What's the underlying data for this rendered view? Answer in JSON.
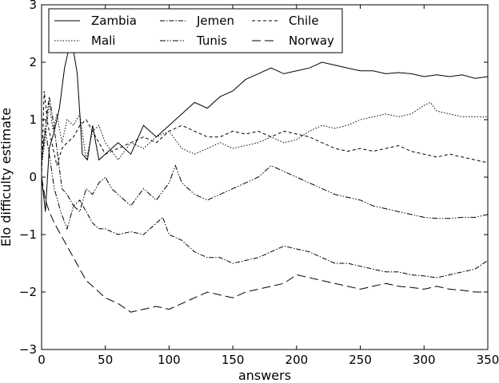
{
  "chart_data": {
    "type": "line",
    "title": "",
    "xlabel": "answers",
    "ylabel": "Elo difficulty estimate",
    "xlim": [
      0,
      350
    ],
    "ylim": [
      -3,
      3
    ],
    "xticks": [
      "0",
      "50",
      "100",
      "150",
      "200",
      "250",
      "300",
      "350"
    ],
    "yticks": [
      "3",
      "2",
      "1",
      "0",
      "−1",
      "−2",
      "−3"
    ],
    "grid": false,
    "legend_position": "top-left",
    "series": [
      {
        "name": "Zambia",
        "line_style": "solid",
        "points": [
          [
            0,
            0.0
          ],
          [
            3,
            -0.6
          ],
          [
            6,
            0.5
          ],
          [
            10,
            0.8
          ],
          [
            14,
            1.2
          ],
          [
            18,
            1.9
          ],
          [
            22,
            2.3
          ],
          [
            25,
            2.2
          ],
          [
            28,
            1.8
          ],
          [
            32,
            0.4
          ],
          [
            36,
            0.3
          ],
          [
            40,
            0.9
          ],
          [
            45,
            0.3
          ],
          [
            50,
            0.4
          ],
          [
            60,
            0.6
          ],
          [
            70,
            0.4
          ],
          [
            80,
            0.9
          ],
          [
            90,
            0.7
          ],
          [
            100,
            0.9
          ],
          [
            110,
            1.1
          ],
          [
            120,
            1.3
          ],
          [
            130,
            1.2
          ],
          [
            140,
            1.4
          ],
          [
            150,
            1.5
          ],
          [
            160,
            1.7
          ],
          [
            170,
            1.8
          ],
          [
            180,
            1.9
          ],
          [
            190,
            1.8
          ],
          [
            200,
            1.85
          ],
          [
            210,
            1.9
          ],
          [
            220,
            2.0
          ],
          [
            230,
            1.95
          ],
          [
            240,
            1.9
          ],
          [
            250,
            1.85
          ],
          [
            260,
            1.85
          ],
          [
            270,
            1.8
          ],
          [
            280,
            1.82
          ],
          [
            290,
            1.8
          ],
          [
            300,
            1.75
          ],
          [
            310,
            1.78
          ],
          [
            320,
            1.75
          ],
          [
            330,
            1.78
          ],
          [
            340,
            1.72
          ],
          [
            350,
            1.75
          ]
        ]
      },
      {
        "name": "Mali",
        "line_style": "dotted",
        "points": [
          [
            0,
            0.2
          ],
          [
            3,
            0.7
          ],
          [
            6,
            1.3
          ],
          [
            9,
            0.8
          ],
          [
            12,
            1.1
          ],
          [
            16,
            0.6
          ],
          [
            20,
            1.0
          ],
          [
            25,
            0.9
          ],
          [
            30,
            1.1
          ],
          [
            35,
            0.3
          ],
          [
            40,
            0.8
          ],
          [
            45,
            0.9
          ],
          [
            50,
            0.6
          ],
          [
            60,
            0.3
          ],
          [
            70,
            0.6
          ],
          [
            80,
            0.5
          ],
          [
            90,
            0.7
          ],
          [
            100,
            0.8
          ],
          [
            110,
            0.5
          ],
          [
            120,
            0.4
          ],
          [
            130,
            0.5
          ],
          [
            140,
            0.6
          ],
          [
            150,
            0.5
          ],
          [
            160,
            0.55
          ],
          [
            170,
            0.6
          ],
          [
            180,
            0.7
          ],
          [
            190,
            0.6
          ],
          [
            200,
            0.65
          ],
          [
            210,
            0.8
          ],
          [
            220,
            0.9
          ],
          [
            230,
            0.85
          ],
          [
            240,
            0.9
          ],
          [
            250,
            1.0
          ],
          [
            260,
            1.05
          ],
          [
            270,
            1.1
          ],
          [
            280,
            1.05
          ],
          [
            290,
            1.1
          ],
          [
            300,
            1.25
          ],
          [
            305,
            1.3
          ],
          [
            310,
            1.15
          ],
          [
            320,
            1.1
          ],
          [
            330,
            1.05
          ],
          [
            340,
            1.05
          ],
          [
            350,
            1.05
          ]
        ]
      },
      {
        "name": "Jemen",
        "line_style": "dashdot",
        "points": [
          [
            0,
            0.3
          ],
          [
            3,
            0.9
          ],
          [
            6,
            1.4
          ],
          [
            9,
            1.0
          ],
          [
            12,
            0.5
          ],
          [
            16,
            -0.2
          ],
          [
            20,
            -0.3
          ],
          [
            25,
            -0.5
          ],
          [
            30,
            -0.4
          ],
          [
            35,
            -0.6
          ],
          [
            40,
            -0.8
          ],
          [
            45,
            -0.9
          ],
          [
            50,
            -0.9
          ],
          [
            60,
            -1.0
          ],
          [
            70,
            -0.95
          ],
          [
            80,
            -1.0
          ],
          [
            90,
            -0.8
          ],
          [
            95,
            -0.7
          ],
          [
            100,
            -1.0
          ],
          [
            110,
            -1.1
          ],
          [
            120,
            -1.3
          ],
          [
            130,
            -1.4
          ],
          [
            140,
            -1.4
          ],
          [
            150,
            -1.5
          ],
          [
            160,
            -1.45
          ],
          [
            170,
            -1.4
          ],
          [
            180,
            -1.3
          ],
          [
            190,
            -1.2
          ],
          [
            200,
            -1.25
          ],
          [
            210,
            -1.3
          ],
          [
            220,
            -1.4
          ],
          [
            230,
            -1.5
          ],
          [
            240,
            -1.5
          ],
          [
            250,
            -1.55
          ],
          [
            260,
            -1.6
          ],
          [
            270,
            -1.65
          ],
          [
            280,
            -1.65
          ],
          [
            290,
            -1.7
          ],
          [
            300,
            -1.72
          ],
          [
            310,
            -1.75
          ],
          [
            320,
            -1.7
          ],
          [
            330,
            -1.65
          ],
          [
            340,
            -1.6
          ],
          [
            350,
            -1.45
          ]
        ]
      },
      {
        "name": "Tunis",
        "line_style": "dashdotdot",
        "points": [
          [
            0,
            0.3
          ],
          [
            3,
            0.8
          ],
          [
            6,
            0.4
          ],
          [
            10,
            -0.2
          ],
          [
            15,
            -0.6
          ],
          [
            20,
            -0.9
          ],
          [
            25,
            -0.5
          ],
          [
            30,
            -0.6
          ],
          [
            35,
            -0.2
          ],
          [
            40,
            -0.3
          ],
          [
            45,
            -0.1
          ],
          [
            50,
            0.0
          ],
          [
            55,
            -0.2
          ],
          [
            60,
            -0.3
          ],
          [
            70,
            -0.5
          ],
          [
            80,
            -0.2
          ],
          [
            90,
            -0.4
          ],
          [
            100,
            -0.1
          ],
          [
            105,
            0.2
          ],
          [
            110,
            -0.1
          ],
          [
            120,
            -0.3
          ],
          [
            130,
            -0.4
          ],
          [
            140,
            -0.3
          ],
          [
            150,
            -0.2
          ],
          [
            160,
            -0.1
          ],
          [
            170,
            0.0
          ],
          [
            180,
            0.2
          ],
          [
            185,
            0.15
          ],
          [
            190,
            0.1
          ],
          [
            200,
            0.0
          ],
          [
            210,
            -0.1
          ],
          [
            220,
            -0.2
          ],
          [
            230,
            -0.3
          ],
          [
            240,
            -0.35
          ],
          [
            250,
            -0.4
          ],
          [
            260,
            -0.5
          ],
          [
            270,
            -0.55
          ],
          [
            280,
            -0.6
          ],
          [
            290,
            -0.65
          ],
          [
            300,
            -0.7
          ],
          [
            310,
            -0.72
          ],
          [
            320,
            -0.72
          ],
          [
            330,
            -0.7
          ],
          [
            340,
            -0.7
          ],
          [
            350,
            -0.65
          ]
        ]
      },
      {
        "name": "Chile",
        "line_style": "dashed",
        "points": [
          [
            0,
            0.0
          ],
          [
            2,
            1.5
          ],
          [
            5,
            0.9
          ],
          [
            8,
            0.6
          ],
          [
            12,
            0.2
          ],
          [
            16,
            0.5
          ],
          [
            20,
            0.6
          ],
          [
            25,
            0.7
          ],
          [
            30,
            0.9
          ],
          [
            35,
            1.0
          ],
          [
            40,
            0.8
          ],
          [
            45,
            0.6
          ],
          [
            50,
            0.4
          ],
          [
            60,
            0.5
          ],
          [
            70,
            0.6
          ],
          [
            80,
            0.7
          ],
          [
            90,
            0.6
          ],
          [
            100,
            0.8
          ],
          [
            110,
            0.9
          ],
          [
            120,
            0.8
          ],
          [
            130,
            0.7
          ],
          [
            140,
            0.7
          ],
          [
            150,
            0.8
          ],
          [
            160,
            0.75
          ],
          [
            170,
            0.8
          ],
          [
            180,
            0.7
          ],
          [
            190,
            0.8
          ],
          [
            200,
            0.75
          ],
          [
            210,
            0.7
          ],
          [
            220,
            0.6
          ],
          [
            230,
            0.5
          ],
          [
            240,
            0.45
          ],
          [
            250,
            0.5
          ],
          [
            260,
            0.45
          ],
          [
            270,
            0.5
          ],
          [
            280,
            0.55
          ],
          [
            290,
            0.45
          ],
          [
            300,
            0.4
          ],
          [
            310,
            0.35
          ],
          [
            320,
            0.4
          ],
          [
            330,
            0.35
          ],
          [
            340,
            0.3
          ],
          [
            350,
            0.25
          ]
        ]
      },
      {
        "name": "Norway",
        "line_style": "longdash",
        "points": [
          [
            0,
            0.0
          ],
          [
            3,
            -0.4
          ],
          [
            6,
            -0.6
          ],
          [
            10,
            -0.8
          ],
          [
            15,
            -1.0
          ],
          [
            20,
            -1.2
          ],
          [
            25,
            -1.4
          ],
          [
            30,
            -1.6
          ],
          [
            35,
            -1.8
          ],
          [
            40,
            -1.9
          ],
          [
            45,
            -2.0
          ],
          [
            50,
            -2.1
          ],
          [
            60,
            -2.2
          ],
          [
            70,
            -2.35
          ],
          [
            80,
            -2.3
          ],
          [
            90,
            -2.25
          ],
          [
            100,
            -2.3
          ],
          [
            110,
            -2.2
          ],
          [
            120,
            -2.1
          ],
          [
            130,
            -2.0
          ],
          [
            140,
            -2.05
          ],
          [
            150,
            -2.1
          ],
          [
            160,
            -2.0
          ],
          [
            170,
            -1.95
          ],
          [
            180,
            -1.9
          ],
          [
            190,
            -1.85
          ],
          [
            200,
            -1.7
          ],
          [
            210,
            -1.75
          ],
          [
            220,
            -1.8
          ],
          [
            230,
            -1.85
          ],
          [
            240,
            -1.9
          ],
          [
            250,
            -1.95
          ],
          [
            260,
            -1.9
          ],
          [
            270,
            -1.85
          ],
          [
            280,
            -1.9
          ],
          [
            290,
            -1.92
          ],
          [
            300,
            -1.95
          ],
          [
            310,
            -1.9
          ],
          [
            320,
            -1.95
          ],
          [
            330,
            -1.97
          ],
          [
            340,
            -2.0
          ],
          [
            350,
            -2.0
          ]
        ]
      }
    ]
  }
}
